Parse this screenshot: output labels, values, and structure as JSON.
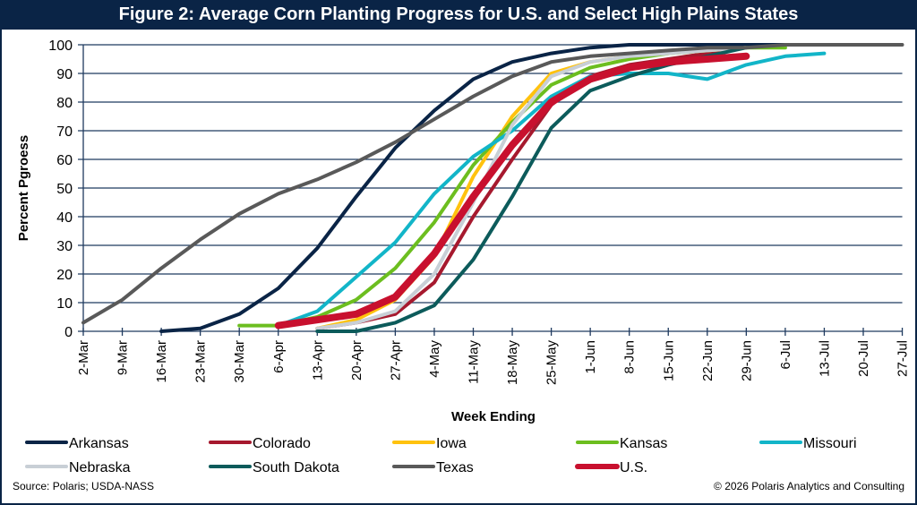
{
  "chart_data": {
    "type": "line",
    "title": "Figure 2: Average Corn Planting Progress for U.S. and Select High Plains States",
    "xlabel": "Week Ending",
    "ylabel": "Percent Pgroess",
    "ylim": [
      0,
      100
    ],
    "yticks": [
      0,
      10,
      20,
      30,
      40,
      50,
      60,
      70,
      80,
      90,
      100
    ],
    "grid": true,
    "legend_position": "bottom",
    "categories": [
      "2-Mar",
      "9-Mar",
      "16-Mar",
      "23-Mar",
      "30-Mar",
      "6-Apr",
      "13-Apr",
      "20-Apr",
      "27-Apr",
      "4-May",
      "11-May",
      "18-May",
      "25-May",
      "1-Jun",
      "8-Jun",
      "15-Jun",
      "22-Jun",
      "29-Jun",
      "6-Jul",
      "13-Jul",
      "20-Jul",
      "27-Jul"
    ],
    "series": [
      {
        "name": "Arkansas",
        "color": "#0a2446",
        "values": [
          null,
          null,
          0,
          1,
          6,
          15,
          29,
          47,
          64,
          77,
          88,
          94,
          97,
          99,
          100,
          100,
          100,
          100,
          100,
          null,
          null,
          null
        ]
      },
      {
        "name": "Colorado",
        "color": "#a6192e",
        "values": [
          null,
          null,
          null,
          null,
          null,
          null,
          1,
          3,
          6,
          17,
          40,
          60,
          79,
          89,
          93,
          95,
          97,
          99,
          null,
          null,
          null,
          null
        ]
      },
      {
        "name": "Iowa",
        "color": "#ffc20e",
        "values": [
          null,
          null,
          null,
          null,
          null,
          null,
          1,
          4,
          11,
          26,
          54,
          75,
          90,
          94,
          96,
          97,
          98,
          99,
          null,
          null,
          null,
          null
        ]
      },
      {
        "name": "Kansas",
        "color": "#6cbe1f",
        "values": [
          null,
          null,
          null,
          null,
          2,
          2,
          5,
          11,
          22,
          38,
          58,
          73,
          86,
          92,
          95,
          97,
          98,
          99,
          99,
          null,
          null,
          null
        ]
      },
      {
        "name": "Missouri",
        "color": "#12b5c8",
        "values": [
          null,
          null,
          null,
          null,
          null,
          2,
          7,
          19,
          31,
          48,
          61,
          70,
          82,
          89,
          90,
          90,
          88,
          93,
          96,
          97,
          null,
          null
        ]
      },
      {
        "name": "Nebraska",
        "color": "#c8cfd6",
        "values": [
          null,
          null,
          null,
          null,
          null,
          null,
          1,
          3,
          7,
          20,
          45,
          72,
          89,
          94,
          96,
          97,
          98,
          99,
          null,
          null,
          null,
          null
        ]
      },
      {
        "name": "South Dakota",
        "color": "#0c5b5b",
        "values": [
          null,
          null,
          null,
          null,
          null,
          null,
          0,
          0,
          3,
          9,
          25,
          47,
          71,
          84,
          89,
          93,
          96,
          99,
          null,
          null,
          null,
          null
        ]
      },
      {
        "name": "Texas",
        "color": "#595959",
        "values": [
          3,
          11,
          22,
          32,
          41,
          48,
          53,
          59,
          66,
          74,
          82,
          89,
          94,
          96,
          97,
          98,
          99,
          99,
          100,
          100,
          100,
          100
        ]
      },
      {
        "name": "U.S.",
        "color": "#c8102e",
        "values": [
          null,
          null,
          null,
          null,
          null,
          2,
          4,
          6,
          12,
          27,
          47,
          65,
          80,
          88,
          92,
          94,
          95,
          96,
          null,
          null,
          null,
          null
        ]
      }
    ]
  },
  "source": "Source: Polaris; USDA-NASS",
  "copyright": "© 2026 Polaris Analytics and Consulting"
}
